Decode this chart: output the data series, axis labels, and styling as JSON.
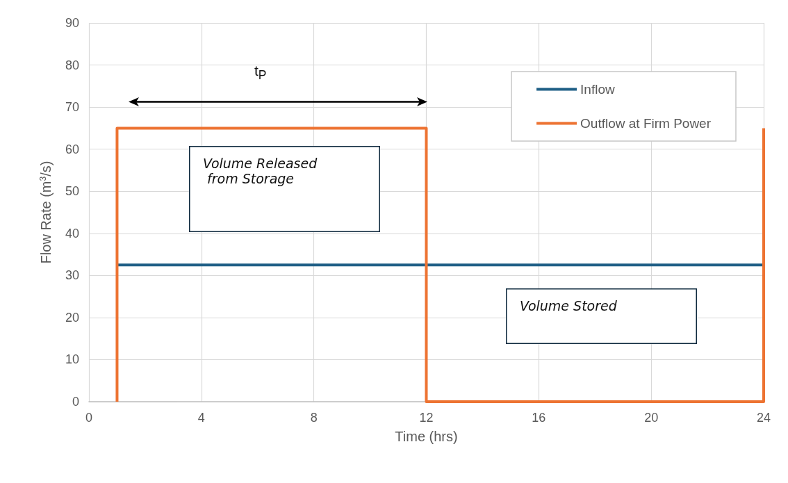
{
  "chart_data": {
    "type": "line",
    "xlabel": "Time (hrs)",
    "ylabel": "Flow Rate (m$^{3}$/s)",
    "xlim": [
      0,
      24
    ],
    "xticks": [
      0,
      4,
      8,
      12,
      16,
      20,
      24
    ],
    "ylim": [
      0,
      90
    ],
    "yticks": [
      0,
      10,
      20,
      30,
      40,
      50,
      60,
      70,
      80,
      90
    ],
    "series": [
      {
        "name": "Inflow",
        "color": "#1f5f86",
        "x": [
          1,
          24
        ],
        "values": [
          32.5,
          32.5
        ]
      },
      {
        "name": "Outflow at Firm Power",
        "color": "#ed7332",
        "x": [
          1,
          1,
          12,
          12,
          24,
          24
        ],
        "values": [
          0,
          65,
          65,
          0,
          0,
          65
        ]
      }
    ],
    "annotations": [
      "t$_{P}$",
      "Volume Released\n from Storage",
      "Volume Stored"
    ],
    "grid": true,
    "legend": "top right",
    "marker": "none",
    "line_style": "solid"
  }
}
